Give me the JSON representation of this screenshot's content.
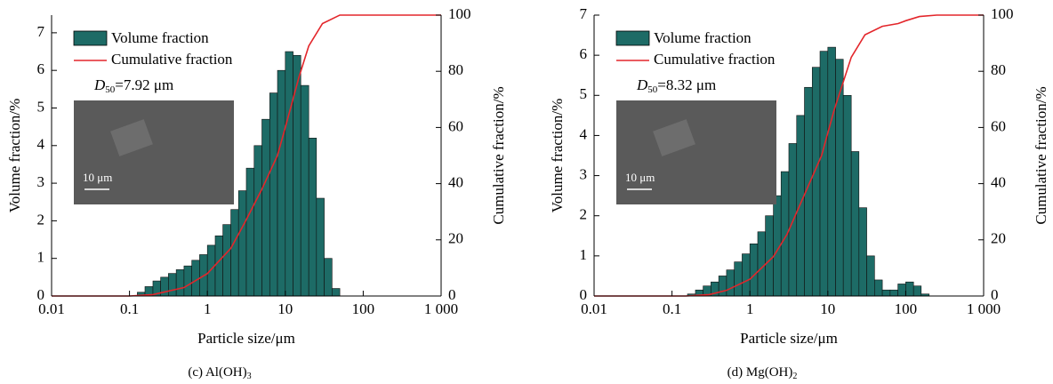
{
  "chart_data": [
    {
      "type": "histogram",
      "name": "Volume fraction",
      "color": "#1d6b66",
      "bins": [
        0.126,
        0.158,
        0.2,
        0.251,
        0.316,
        0.398,
        0.501,
        0.631,
        0.794,
        1,
        1.26,
        1.58,
        2,
        2.51,
        3.16,
        3.98,
        5.01,
        6.31,
        7.94,
        10,
        12.6,
        15.8,
        20,
        25.1,
        31.6,
        39.8,
        50.1
      ],
      "counts": [
        0.1,
        0.25,
        0.4,
        0.5,
        0.6,
        0.7,
        0.8,
        0.95,
        1.1,
        1.35,
        1.6,
        1.9,
        2.3,
        2.8,
        3.4,
        4.0,
        4.7,
        5.4,
        6.0,
        6.5,
        6.4,
        5.6,
        4.2,
        2.6,
        1.0,
        0.2
      ],
      "cumulative": {
        "name": "Cumulative fraction",
        "color": "#e3262b",
        "axis": "y2",
        "x": [
          0.01,
          0.1,
          0.2,
          0.5,
          1,
          2,
          3,
          5,
          7.92,
          10,
          15,
          20,
          30,
          50,
          1000
        ],
        "values": [
          0,
          0,
          0.5,
          3,
          8,
          17,
          26,
          38,
          50,
          60,
          78,
          89,
          97,
          100,
          100
        ]
      },
      "xscale": "log",
      "xlim": [
        0.01,
        1000
      ],
      "xticks": [
        0.01,
        0.1,
        1,
        10,
        100,
        {
          "value": 1000,
          "label": "1 000"
        }
      ],
      "ylim": [
        0,
        7.47
      ],
      "yticks": [
        0,
        1,
        2,
        3,
        4,
        5,
        6,
        7
      ],
      "y2lim": [
        0,
        100
      ],
      "y2ticks": [
        0,
        20,
        40,
        60,
        80,
        100
      ],
      "xlabel": "Particle size/μm",
      "ylabel": "Volume fraction/%",
      "y2label": "Cumulative fraction/%",
      "annotation": [
        "D",
        "50",
        "=7.92 μm"
      ],
      "inset_scale": "10 μm",
      "caption": [
        "(c) Al(OH)",
        "3"
      ]
    },
    {
      "type": "histogram",
      "name": "Volume fraction",
      "color": "#1d6b66",
      "bins": [
        0.158,
        0.2,
        0.251,
        0.316,
        0.398,
        0.501,
        0.631,
        0.794,
        1,
        1.26,
        1.58,
        2,
        2.51,
        3.16,
        3.98,
        5.01,
        6.31,
        7.94,
        10,
        12.6,
        15.8,
        20,
        25.1,
        31.6,
        39.8,
        50.1,
        63.1,
        79.4,
        100,
        126,
        158,
        200
      ],
      "counts": [
        0.05,
        0.15,
        0.25,
        0.35,
        0.5,
        0.65,
        0.85,
        1.05,
        1.3,
        1.6,
        2.0,
        2.5,
        3.1,
        3.8,
        4.5,
        5.2,
        5.7,
        6.1,
        6.2,
        5.9,
        5.0,
        3.6,
        2.2,
        1.0,
        0.4,
        0.15,
        0.15,
        0.3,
        0.35,
        0.25,
        0.05
      ],
      "cumulative": {
        "name": "Cumulative fraction",
        "color": "#e3262b",
        "axis": "y2",
        "x": [
          0.01,
          0.15,
          0.3,
          0.5,
          1,
          2,
          3,
          5,
          8.32,
          12,
          20,
          30,
          50,
          80,
          100,
          150,
          250,
          1000
        ],
        "values": [
          0,
          0,
          0.5,
          2,
          6,
          14,
          22,
          36,
          50,
          66,
          85,
          93,
          96,
          97,
          98,
          99.5,
          100,
          100
        ]
      },
      "xscale": "log",
      "xlim": [
        0.01,
        1000
      ],
      "xticks": [
        0.01,
        0.1,
        1,
        10,
        100,
        {
          "value": 1000,
          "label": "1 000"
        }
      ],
      "ylim": [
        0,
        7
      ],
      "yticks": [
        0,
        1,
        2,
        3,
        4,
        5,
        6,
        7
      ],
      "y2lim": [
        0,
        100
      ],
      "y2ticks": [
        0,
        20,
        40,
        60,
        80,
        100
      ],
      "xlabel": "Particle size/μm",
      "ylabel": "Volume fraction/%",
      "y2label": "Cumulative fraction/%",
      "annotation": [
        "D",
        "50",
        "=8.32 μm"
      ],
      "inset_scale": "10 μm",
      "caption": [
        "(d) Mg(OH)",
        "2"
      ]
    }
  ]
}
